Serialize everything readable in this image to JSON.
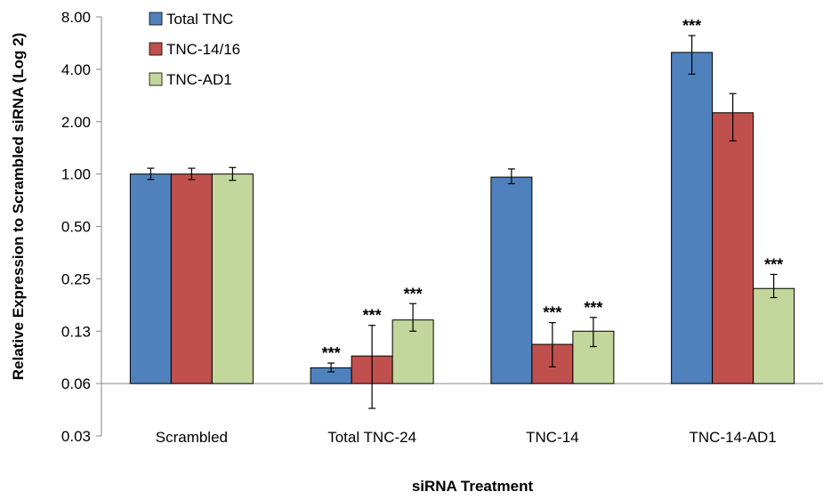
{
  "chart_data": {
    "type": "bar",
    "title": "",
    "xlabel": "siRNA Treatment",
    "ylabel": "Relative Expression to Scrambled siRNA (Log 2)",
    "y_scale": "log2",
    "ylim": [
      0.03,
      8.0
    ],
    "y_ticks": [
      0.03,
      0.06,
      0.13,
      0.25,
      0.5,
      1.0,
      2.0,
      4.0,
      8.0
    ],
    "y_tick_labels": [
      "0.03",
      "0.06",
      "0.13",
      "0.25",
      "0.50",
      "1.00",
      "2.00",
      "4.00",
      "8.00"
    ],
    "baseline": 0.0625,
    "categories": [
      "Scrambled",
      "Total TNC-24",
      "TNC-14",
      "TNC-14-AD1"
    ],
    "legend_position": "top-left",
    "grid": false,
    "series": [
      {
        "name": "Total TNC",
        "color": "#4f81bd",
        "values": [
          1.0,
          0.077,
          0.96,
          5.0
        ],
        "err_low": [
          0.93,
          0.073,
          0.88,
          3.75
        ],
        "err_high": [
          1.08,
          0.082,
          1.07,
          6.25
        ],
        "significance": [
          "",
          "***",
          "",
          "***"
        ]
      },
      {
        "name": "TNC-14/16",
        "color": "#c0504d",
        "values": [
          1.0,
          0.09,
          0.105,
          2.25
        ],
        "err_low": [
          0.93,
          0.045,
          0.078,
          1.55
        ],
        "err_high": [
          1.08,
          0.135,
          0.14,
          2.9
        ],
        "significance": [
          "",
          "***",
          "***",
          ""
        ]
      },
      {
        "name": "TNC-AD1",
        "color": "#c3d69b",
        "values": [
          1.0,
          0.145,
          0.125,
          0.22
        ],
        "err_low": [
          0.92,
          0.125,
          0.102,
          0.195
        ],
        "err_high": [
          1.09,
          0.18,
          0.15,
          0.265
        ],
        "significance": [
          "",
          "***",
          "***",
          "***"
        ]
      }
    ]
  }
}
